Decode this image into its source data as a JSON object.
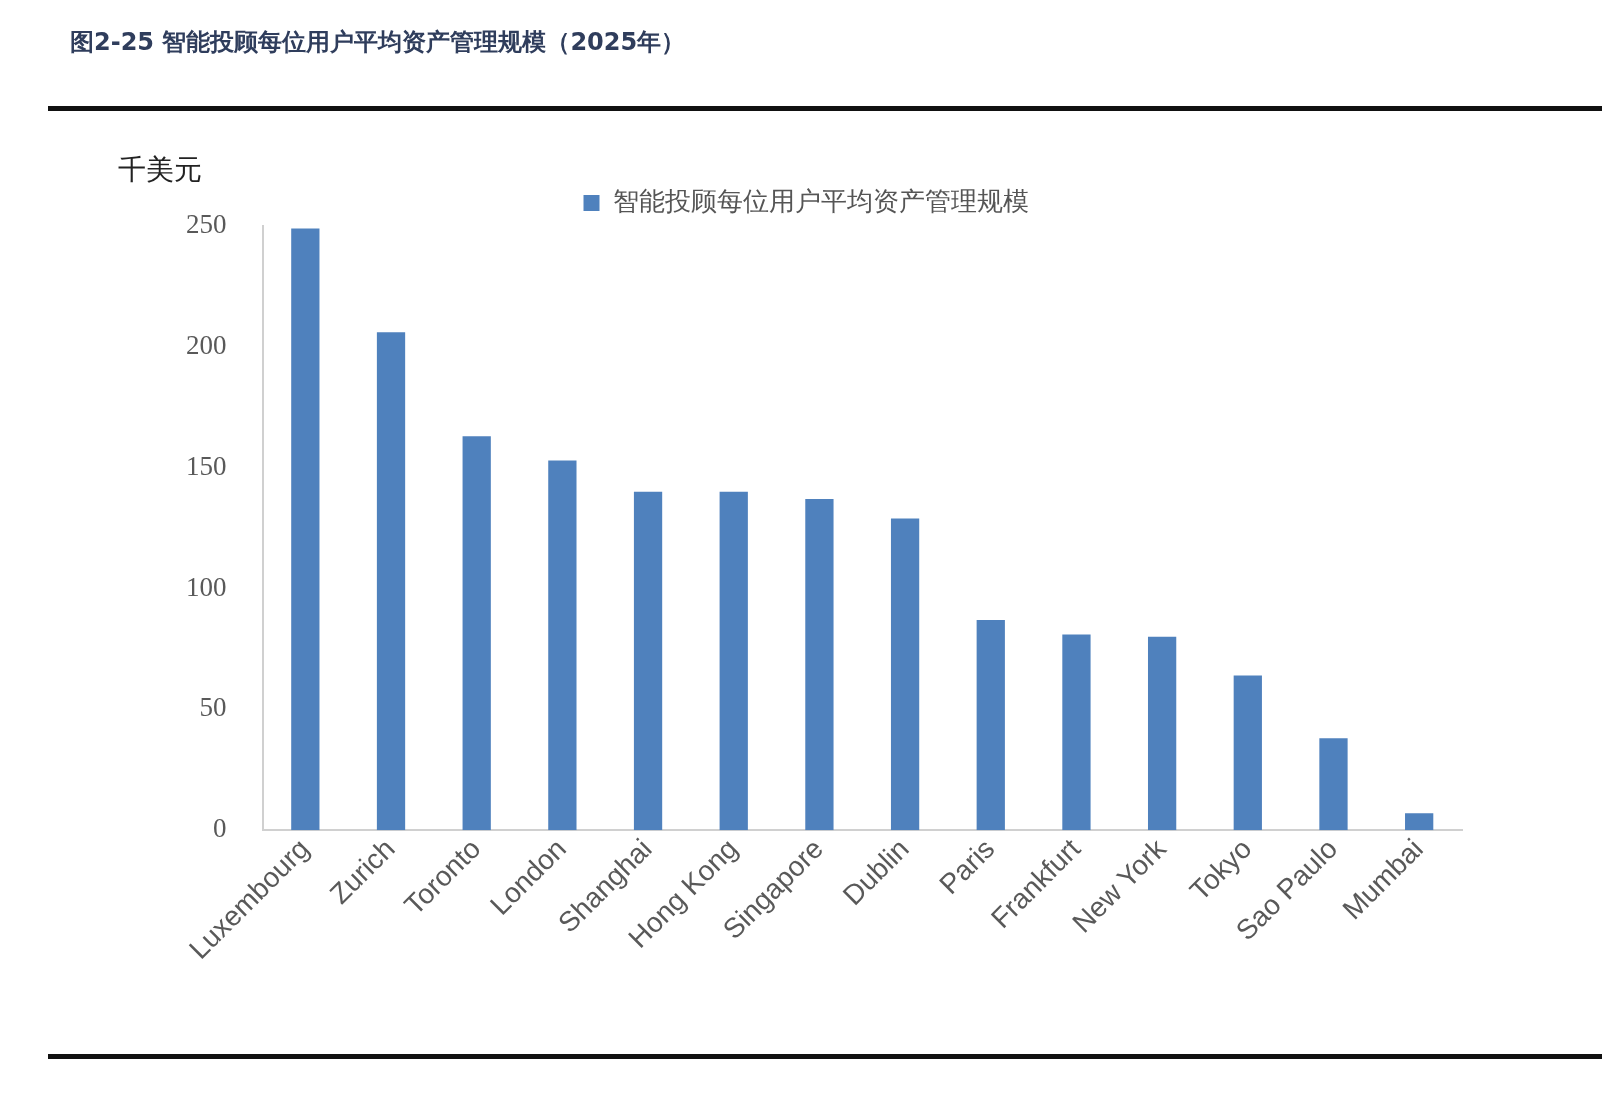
{
  "chart_data": {
    "type": "bar",
    "title": "图2-25 智能投顾每位用户平均资产管理规模（2025年）",
    "ylabel": "千美元",
    "categories": [
      "Luxembourg",
      "Zurich",
      "Toronto",
      "London",
      "Shanghai",
      "Hong Kong",
      "Singapore",
      "Dublin",
      "Paris",
      "Frankfurt",
      "New York",
      "Tokyo",
      "Sao Paulo",
      "Mumbai"
    ],
    "series": [
      {
        "name": "智能投顾每位用户平均资产管理规模",
        "color": "#4f81bd",
        "values": [
          249,
          206,
          163,
          153,
          140,
          140,
          137,
          129,
          87,
          81,
          80,
          64,
          38,
          7
        ]
      }
    ],
    "ylim": [
      0,
      250
    ],
    "yticks": [
      0,
      50,
      100,
      150,
      200,
      250
    ],
    "grid": false,
    "legend": "top"
  }
}
